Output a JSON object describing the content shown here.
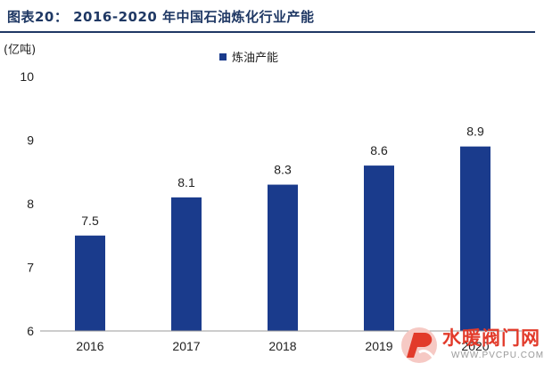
{
  "figure": {
    "title": "图表20：  2016-2020 年中国石油炼化行业产能",
    "unit": "(亿吨)"
  },
  "chart_data": {
    "type": "bar",
    "categories": [
      "2016",
      "2017",
      "2018",
      "2019",
      "2020"
    ],
    "series": [
      {
        "name": "炼油产能",
        "values": [
          7.5,
          8.1,
          8.3,
          8.6,
          8.9
        ]
      }
    ],
    "data_labels": [
      "7.5",
      "8.1",
      "8.3",
      "8.6",
      "8.9"
    ],
    "y_ticks": [
      "6",
      "7",
      "8",
      "9",
      "10"
    ],
    "ylim": [
      6,
      10
    ],
    "grid": false,
    "legend_position": "top-center",
    "bar_color": "#1a3b8c"
  },
  "watermark": {
    "brand_text": "水暖阀门网",
    "url_text": "WWW.PVCPU.COM",
    "color": "#e23a2a"
  }
}
